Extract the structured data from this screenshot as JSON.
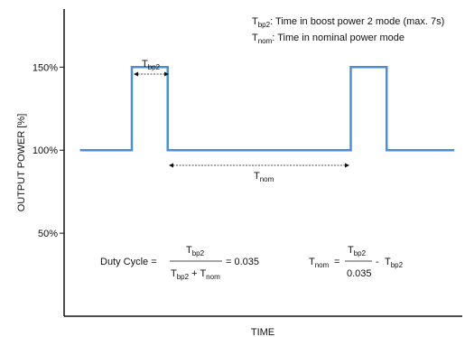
{
  "chart_data": {
    "type": "line",
    "xlabel": "TIME",
    "ylabel": "OUTPUT POWER [%]",
    "ylim": [
      0,
      185
    ],
    "xlim": [
      0,
      100
    ],
    "yticks": [
      {
        "value": 150,
        "label": "150%"
      },
      {
        "value": 100,
        "label": "100%"
      },
      {
        "value": 50,
        "label": "50%"
      }
    ],
    "series": [
      {
        "color": "#4a8fd4",
        "x": [
          4,
          17,
          17,
          26,
          26,
          72,
          72,
          81,
          81,
          98
        ],
        "y": [
          100,
          100,
          150,
          150,
          100,
          100,
          150,
          150,
          100,
          100
        ]
      }
    ],
    "grid": false,
    "legend": [
      {
        "main": "T",
        "sub": "bp2",
        "rest": ": Time in boost power 2 mode (max. 7s)"
      },
      {
        "main": "T",
        "sub": "nom",
        "rest": ": Time in nominal power mode"
      }
    ],
    "annotations": {
      "tbp2": {
        "main": "T",
        "sub": "bp2"
      },
      "tnom": {
        "main": "T",
        "sub": "nom"
      }
    },
    "formulas": {
      "duty_label": "Duty Cycle  =",
      "duty_num": {
        "main": "T",
        "sub": "bp2"
      },
      "duty_den_a": {
        "main": "T",
        "sub": "bp2"
      },
      "duty_den_plus": " + ",
      "duty_den_b": {
        "main": "T",
        "sub": "nom"
      },
      "duty_result": "= 0.035",
      "tnom_lhs": {
        "main": "T",
        "sub": "nom"
      },
      "tnom_eq": "=",
      "tnom_num": {
        "main": "T",
        "sub": "bp2"
      },
      "tnom_den": "0.035",
      "tnom_minus": "-",
      "tnom_rhs": {
        "main": "T",
        "sub": "bp2"
      }
    }
  }
}
